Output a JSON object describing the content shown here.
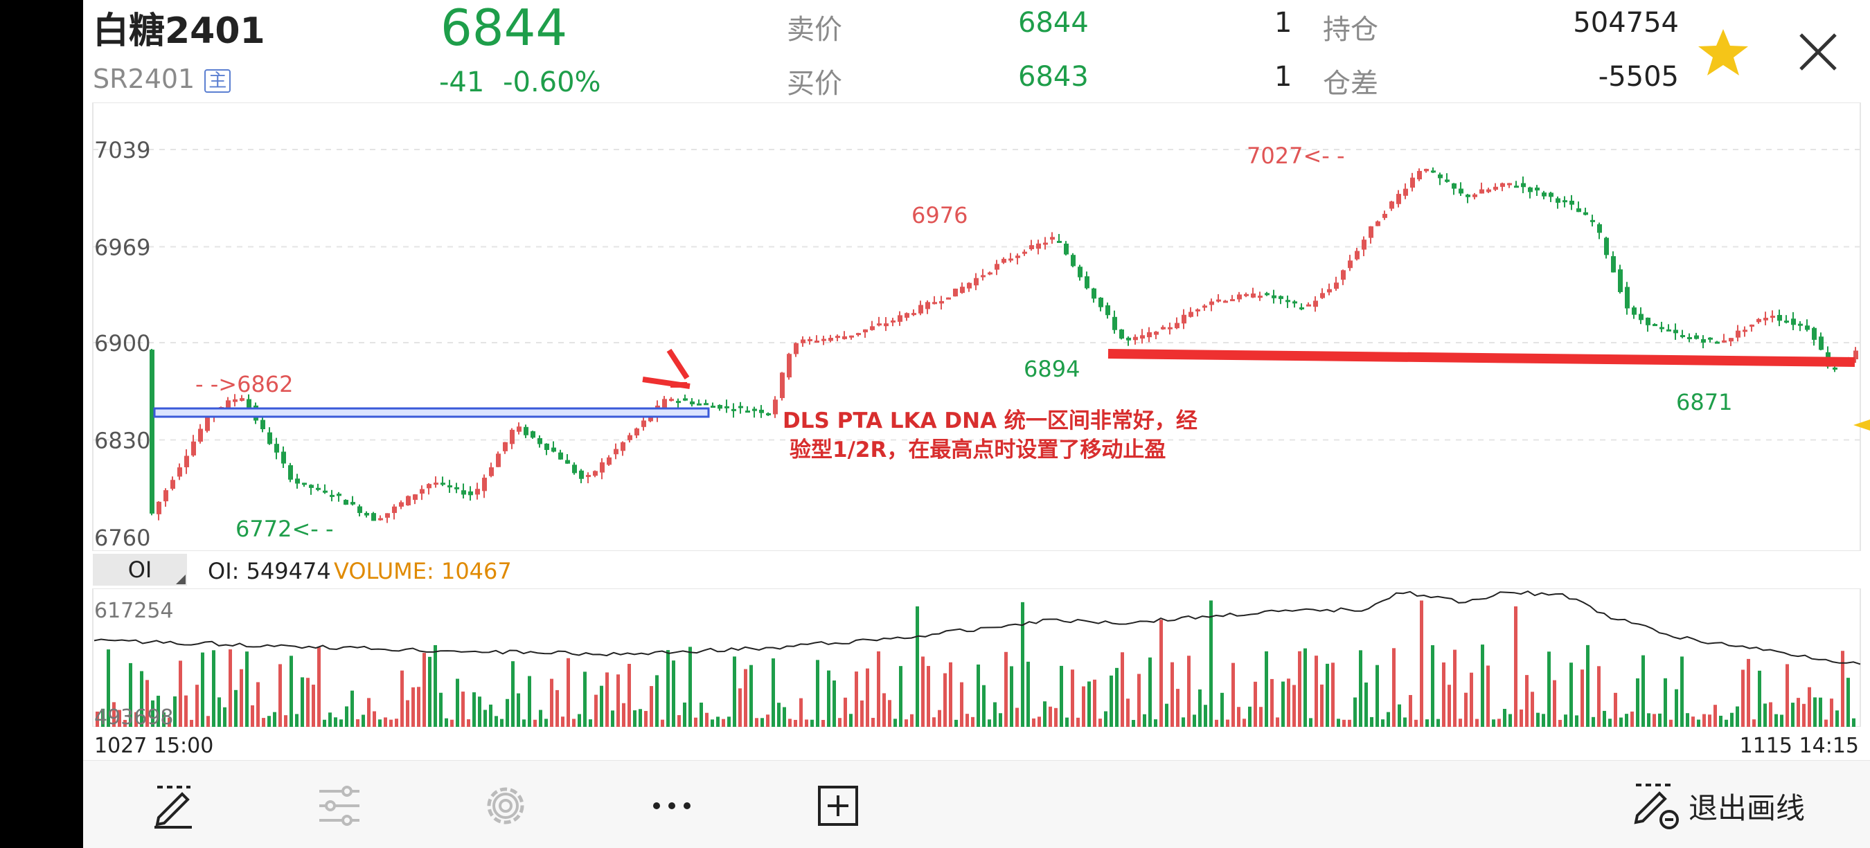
{
  "header": {
    "name": "白糖2401",
    "code": "SR2401",
    "main_badge": "主",
    "price": "6844",
    "change": "-41",
    "change_pct": "-0.60%",
    "ask_label": "卖价",
    "ask_price": "6844",
    "ask_qty": "1",
    "bid_label": "买价",
    "bid_price": "6843",
    "bid_qty": "1",
    "oi_label": "持仓",
    "oi_value": "504754",
    "oi_diff_label": "仓差",
    "oi_diff_value": "-5505",
    "colors": {
      "up": "#e05555",
      "down": "#1e9e4a",
      "star": "#f5c518"
    }
  },
  "price_chart": {
    "y_ticks": [
      "7039",
      "6969",
      "6900",
      "6830",
      "6760"
    ],
    "ylim": [
      6760,
      7039
    ],
    "labels": {
      "low_left": "6772<- -",
      "high_left": "- ->6862",
      "mid_high": "6976",
      "top_high": "7027<- -",
      "low_mid": "6894",
      "low_right": "6871"
    },
    "annotation_line1": "DLS PTA LKA DNA 统一区间非常好，经",
    "annotation_line2": "验型1/2R，在最高点时设置了移动止盈"
  },
  "indicator": {
    "selector": "OI",
    "oi_text": "OI: 549474",
    "volume_text": "VOLUME: 10467",
    "y_top": "617254",
    "y_bottom": "493698"
  },
  "time_axis": {
    "start": "1027 15:00",
    "end": "1115 14:15"
  },
  "toolbar": {
    "exit_label": "退出画线",
    "icons": [
      "pen-icon",
      "sliders-icon",
      "gear-icon",
      "more-icon",
      "add-box-icon",
      "exit-draw-icon"
    ]
  }
}
